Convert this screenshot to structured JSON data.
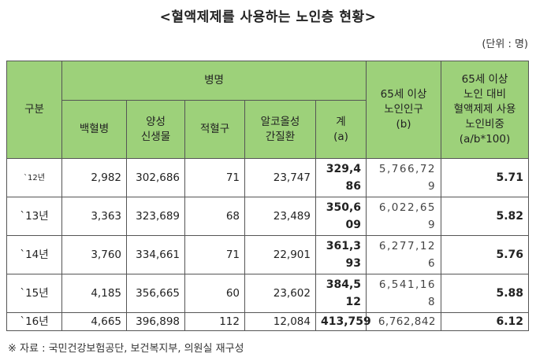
{
  "title": "<혈액제제를 사용하는 노인층 현황>",
  "unit": "(단위 : 명)",
  "headers": {
    "category": "구분",
    "disease_group": "병명",
    "diseases": [
      "백혈병",
      "양성\n신생물",
      "적혈구",
      "알코올성\n간질환"
    ],
    "total": "계\n(a)",
    "elderly_pop": "65세 이상\n노인인구\n(b)",
    "ratio": "65세 이상\n노인 대비\n혈액제제 사용\n노인비중\n(a/b*100)"
  },
  "rows": [
    {
      "year": "`12년",
      "leukemia": "2,982",
      "benign": "302,686",
      "rbc": "71",
      "alcohol": "23,747",
      "total": "329,486",
      "population": "5,766,729",
      "ratio": "5.71"
    },
    {
      "year": "`13년",
      "leukemia": "3,363",
      "benign": "323,689",
      "rbc": "68",
      "alcohol": "23,489",
      "total": "350,609",
      "population": "6,022,659",
      "ratio": "5.82"
    },
    {
      "year": "`14년",
      "leukemia": "3,760",
      "benign": "334,661",
      "rbc": "71",
      "alcohol": "22,901",
      "total": "361,393",
      "population": "6,277,126",
      "ratio": "5.76"
    },
    {
      "year": "`15년",
      "leukemia": "4,185",
      "benign": "356,665",
      "rbc": "60",
      "alcohol": "23,602",
      "total": "384,512",
      "population": "6,541,168",
      "ratio": "5.88"
    },
    {
      "year": "`16년",
      "leukemia": "4,665",
      "benign": "396,898",
      "rbc": "112",
      "alcohol": "12,084",
      "total": "413,759",
      "population": "6,762,842",
      "ratio": "6.12"
    }
  ],
  "source": "※ 자료 : 국민건강보험공단, 보건복지부, 의원실 재구성",
  "colors": {
    "header_bg": "#9dd17a",
    "border": "#555555"
  }
}
